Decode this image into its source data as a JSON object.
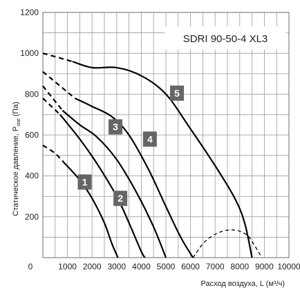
{
  "chart_data": {
    "type": "line",
    "title": "SDRI 90-50-4 XL3",
    "xlabel": "Расход воздуха, L (м³/ч)",
    "ylabel": "Статическое давление, P (Па)",
    "ylabel_main": "Статическое давление, P",
    "ylabel_sub": "stat",
    "ylabel_unit": " (Па)",
    "xlim": [
      0,
      10000
    ],
    "ylim": [
      0,
      1200
    ],
    "x_ticks": [
      0,
      1000,
      2000,
      3000,
      4000,
      5000,
      6000,
      7000,
      8000,
      9000,
      10000
    ],
    "x_tick_labels": [
      "0",
      "1000",
      "2000",
      "3000",
      "4000",
      "5000",
      "6000",
      "7000",
      "8000",
      "9000",
      "10000"
    ],
    "y_ticks": [
      200,
      400,
      600,
      800,
      1000,
      1200
    ],
    "y_tick_labels": [
      "200",
      "400",
      "600",
      "800",
      "1000",
      "1200"
    ],
    "grid": true,
    "grid_minor_x": 500,
    "grid_minor_y": 100,
    "series": [
      {
        "name": "1",
        "dashed": [
          [
            0,
            550
          ],
          [
            500,
            510
          ],
          [
            900,
            460
          ]
        ],
        "solid": [
          [
            900,
            460
          ],
          [
            1500,
            380
          ],
          [
            2000,
            290
          ],
          [
            2500,
            170
          ],
          [
            2800,
            70
          ],
          [
            3050,
            0
          ]
        ]
      },
      {
        "name": "2",
        "dashed": [
          [
            0,
            780
          ],
          [
            700,
            700
          ]
        ],
        "solid": [
          [
            700,
            700
          ],
          [
            1500,
            580
          ],
          [
            2200,
            460
          ],
          [
            3000,
            300
          ],
          [
            3500,
            170
          ],
          [
            4000,
            30
          ],
          [
            4150,
            0
          ]
        ]
      },
      {
        "name": "3",
        "dashed": [
          [
            0,
            840
          ],
          [
            800,
            720
          ]
        ],
        "solid": [
          [
            800,
            720
          ],
          [
            1500,
            650
          ],
          [
            2200,
            590
          ],
          [
            3000,
            480
          ],
          [
            3800,
            320
          ],
          [
            4500,
            150
          ],
          [
            5000,
            0
          ]
        ]
      },
      {
        "name": "4",
        "dashed": [
          [
            0,
            910
          ],
          [
            1300,
            780
          ]
        ],
        "solid": [
          [
            1300,
            780
          ],
          [
            2000,
            740
          ],
          [
            2800,
            690
          ],
          [
            3500,
            600
          ],
          [
            4300,
            430
          ],
          [
            5000,
            250
          ],
          [
            5600,
            100
          ],
          [
            6100,
            0
          ]
        ]
      },
      {
        "name": "5",
        "dashed": [
          [
            0,
            1000
          ],
          [
            1200,
            960
          ]
        ],
        "solid": [
          [
            1200,
            960
          ],
          [
            2000,
            930
          ],
          [
            3000,
            930
          ],
          [
            4000,
            890
          ],
          [
            5000,
            800
          ],
          [
            6000,
            630
          ],
          [
            7000,
            450
          ],
          [
            7800,
            290
          ],
          [
            8200,
            170
          ],
          [
            8500,
            0
          ]
        ]
      }
    ],
    "boundary_curve": {
      "dashed": [
        [
          6100,
          0
        ],
        [
          6600,
          80
        ],
        [
          7200,
          125
        ],
        [
          7800,
          135
        ],
        [
          8300,
          110
        ],
        [
          8600,
          60
        ],
        [
          8900,
          0
        ]
      ]
    },
    "curve_labels": [
      {
        "text": "1",
        "x": 1700,
        "y": 370
      },
      {
        "text": "2",
        "x": 3150,
        "y": 290
      },
      {
        "text": "3",
        "x": 2950,
        "y": 640
      },
      {
        "text": "4",
        "x": 4350,
        "y": 580
      },
      {
        "text": "5",
        "x": 5450,
        "y": 805
      }
    ],
    "colors": {
      "line": "#000000",
      "grid": "#9a9a9a",
      "label_box": "#666666",
      "label_text": "#ffffff"
    }
  }
}
